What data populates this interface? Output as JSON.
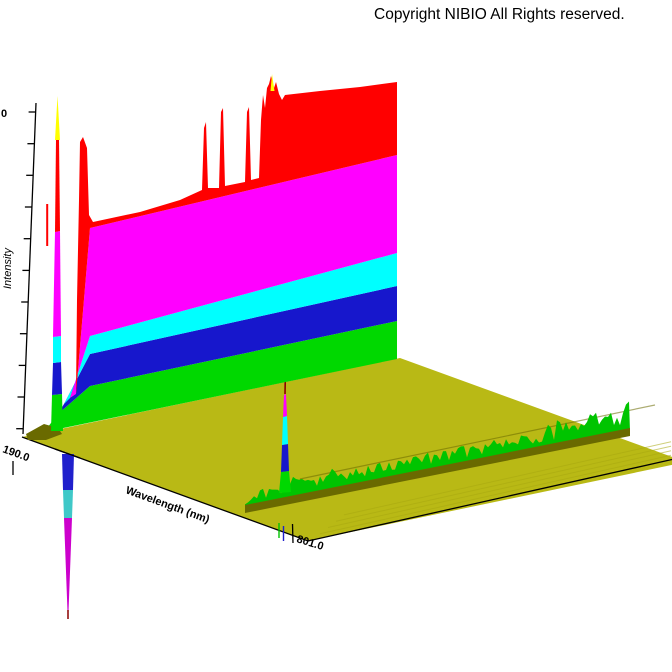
{
  "header": {
    "copyright": "Copyright NIBIO All Rights reserved."
  },
  "chart": {
    "y_axis": {
      "label": "Intensity",
      "top_tick_label": "0",
      "tick_count": 11
    },
    "x_axis": {
      "label": "Wavelength (nm)",
      "start_tick_label": "190.0",
      "end_tick_label": "801.0"
    }
  },
  "colors": {
    "red": "#ff0000",
    "magenta": "#ff00ff",
    "cyan": "#00ffff",
    "blue": "#1717cc",
    "green": "#00d800",
    "noise_green": "#00c400",
    "yellow": "#ffff00",
    "floor": "#b9b915",
    "floor_shadow": "#6a6a00",
    "floor_stripe": "#a8a810",
    "dark_red": "#8b0000",
    "neg_magenta": "#cc00cc",
    "neg_cyan": "#3fc8c8",
    "neg_blue": "#2020cc",
    "axis": "#000000",
    "text": "#000000"
  },
  "chart_data": {
    "type": "area",
    "subtype": "3d-surface-chromatogram (intensity vs wavelength vs time, waterfall view)",
    "title": "",
    "xlabel": "Wavelength (nm)",
    "ylabel": "Intensity",
    "x_range": [
      190.0,
      801.0
    ],
    "x_ticks_visible": [
      "190.0",
      "801.0"
    ],
    "y_ticks_visible": [
      "0"
    ],
    "y_tick_count": 11,
    "third_axis": "time / retention (unlabeled, receding to upper right)",
    "legend": "none",
    "grid": false,
    "intensity_color_scale_high_to_low": [
      "#ffff00",
      "#ff0000",
      "#ff00ff",
      "#00ffff",
      "#1717cc",
      "#00d800",
      "#b9b915"
    ],
    "features": [
      {
        "name": "saturation-wall",
        "wavelength_nm": "≈190-230",
        "description": "full-scale intensity ridge running along the entire time axis, banded red/magenta/cyan/blue/green"
      },
      {
        "name": "early-time-sharp-peak",
        "description": "narrow full-height peak near wavelength-axis origin with yellow (max) tip"
      },
      {
        "name": "thin-peaks-on-wall",
        "count": 4,
        "description": "narrow red spikes rising above the wall plus a jagged cluster with a yellow tip"
      },
      {
        "name": "negative-solvent-peak",
        "description": "blue/cyan/magenta spike hanging below the wavelength axis near 190 nm end"
      },
      {
        "name": "baseline-noise-ridge",
        "description": "green jagged noise band with dark olive shadow running along the time axis near the long-wavelength edge of the olive baseline floor"
      },
      {
        "name": "mid-floor-spike",
        "description": "single narrow green/blue/cyan/magenta spike with dark red tip rising from the noise ridge"
      }
    ]
  }
}
